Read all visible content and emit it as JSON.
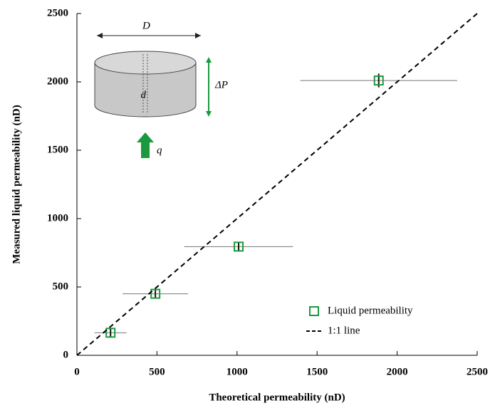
{
  "chart_data": {
    "type": "scatter",
    "xlabel": "Theoretical permeability (nD)",
    "ylabel": "Measured liquid permeability (nD)",
    "xlim": [
      0,
      2500
    ],
    "ylim": [
      0,
      2500
    ],
    "xticks": [
      0,
      500,
      1000,
      1500,
      2000,
      2500
    ],
    "yticks": [
      0,
      500,
      1000,
      1500,
      2000,
      2500
    ],
    "legend": "lower right",
    "annotations": [
      "D",
      "d",
      "ΔP",
      "q"
    ],
    "series": [
      {
        "name": "Liquid permeability",
        "color": "#1a9a3c",
        "x": [
          210,
          490,
          1010,
          1885
        ],
        "values": [
          165,
          450,
          795,
          2010
        ],
        "xerr": [
          100,
          205,
          340,
          490
        ],
        "yerr": [
          30,
          30,
          35,
          50
        ]
      },
      {
        "name": "1:1 line",
        "type": "line",
        "color": "#000000",
        "dashed": true,
        "x": [
          0,
          2500
        ],
        "values": [
          0,
          2500
        ]
      }
    ]
  }
}
